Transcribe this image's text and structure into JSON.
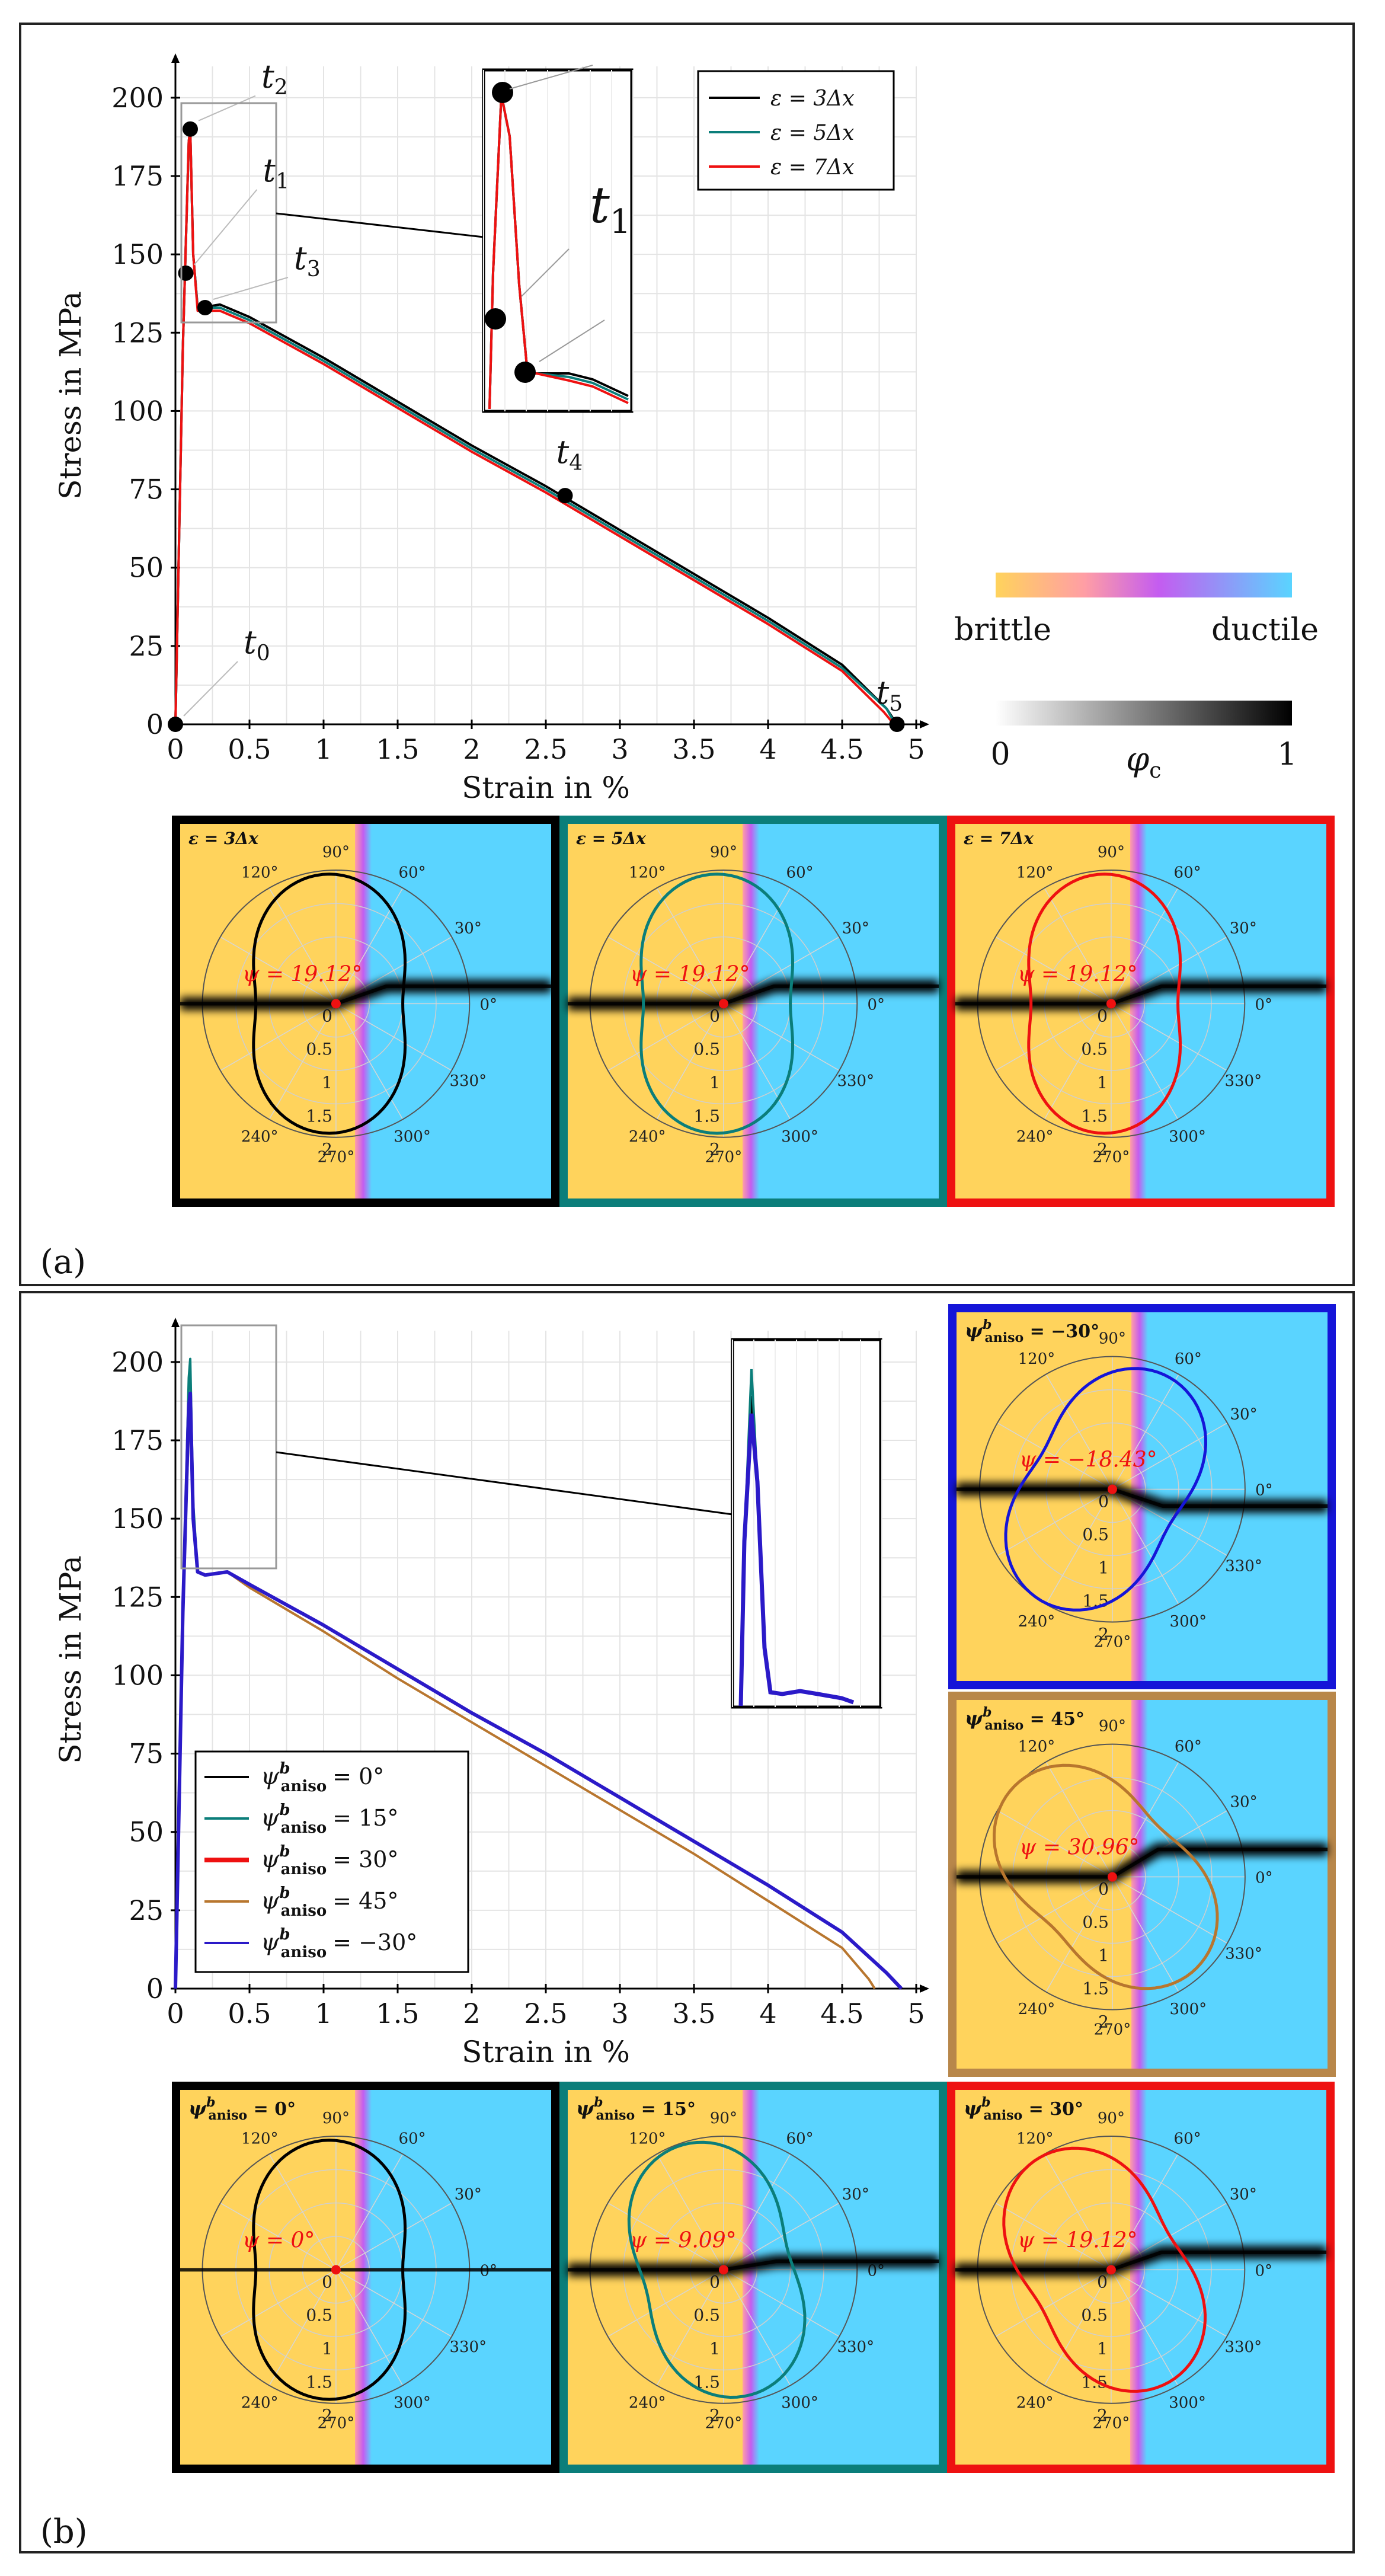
{
  "panels": [
    {
      "id": "a",
      "label": "(a)",
      "chart_data": {
        "type": "line",
        "title": "",
        "xlabel": "Strain in %",
        "ylabel": "Stress in MPa",
        "xlim": [
          0,
          5
        ],
        "ylim": [
          0,
          210
        ],
        "xticks": [
          0,
          0.5,
          1,
          1.5,
          2,
          2.5,
          3,
          3.5,
          4,
          4.5,
          5
        ],
        "xtick_labels": [
          "0",
          "0.5",
          "1",
          "1.5",
          "2",
          "2.5",
          "3",
          "3.5",
          "4",
          "4.5",
          "5"
        ],
        "yticks": [
          0,
          25,
          50,
          75,
          100,
          125,
          150,
          175,
          200
        ],
        "ytick_labels": [
          "0",
          "25",
          "50",
          "75",
          "100",
          "125",
          "150",
          "175",
          "200"
        ],
        "grid": true,
        "legend_position": "top-right",
        "series": [
          {
            "name": "ε = 3Δx",
            "color": "#000000",
            "x": [
              0,
              0.05,
              0.09,
              0.1,
              0.12,
              0.15,
              0.18,
              0.3,
              0.5,
              1.0,
              1.5,
              2.0,
              2.5,
              3.0,
              3.5,
              4.0,
              4.5,
              4.8,
              4.87
            ],
            "y": [
              0,
              120,
              186,
              190,
              150,
              133,
              133,
              134,
              130,
              117,
              103,
              89,
              76,
              62,
              48,
              34,
              19,
              5,
              0
            ]
          },
          {
            "name": "ε = 5Δx",
            "color": "#0b7e7a",
            "x": [
              0,
              0.05,
              0.09,
              0.1,
              0.12,
              0.15,
              0.18,
              0.3,
              0.5,
              1.0,
              1.5,
              2.0,
              2.5,
              3.0,
              3.5,
              4.0,
              4.5,
              4.8,
              4.86
            ],
            "y": [
              0,
              120,
              186,
              190,
              150,
              133,
              133,
              133,
              129,
              116,
              102,
              88,
              75,
              61,
              47,
              33,
              18,
              5,
              0
            ]
          },
          {
            "name": "ε = 7Δx",
            "color": "#ee1111",
            "x": [
              0,
              0.05,
              0.09,
              0.1,
              0.12,
              0.15,
              0.18,
              0.3,
              0.5,
              1.0,
              1.5,
              2.0,
              2.5,
              3.0,
              3.5,
              4.0,
              4.5,
              4.78,
              4.85
            ],
            "y": [
              0,
              120,
              186,
              190,
              150,
              132,
              132,
              132,
              128,
              115,
              101,
              87,
              74,
              60,
              46,
              32,
              17,
              4,
              0
            ]
          }
        ],
        "annotations": [
          {
            "label": "t",
            "sub": "0",
            "x": 0.0,
            "y": 0
          },
          {
            "label": "t",
            "sub": "1",
            "x": 0.07,
            "y": 144
          },
          {
            "label": "t",
            "sub": "2",
            "x": 0.1,
            "y": 190
          },
          {
            "label": "t",
            "sub": "3",
            "x": 0.2,
            "y": 133
          },
          {
            "label": "t",
            "sub": "4",
            "x": 2.63,
            "y": 73
          },
          {
            "label": "t",
            "sub": "5",
            "x": 4.87,
            "y": 0
          }
        ],
        "inset_label": "t",
        "inset_sub": "1"
      },
      "colorbars": {
        "mode_left": "brittle",
        "mode_right": "ductile",
        "phase_min": "0",
        "phase_max": "1",
        "phase_symbol": "φ",
        "phase_sub": "c"
      },
      "subplots": [
        {
          "title": "ε = 3Δx",
          "psi": "ψ = 19.12°",
          "psi_deg": 19.12,
          "rot_deg": 0,
          "curve_color": "#000000",
          "border_color": "#000000"
        },
        {
          "title": "ε = 5Δx",
          "psi": "ψ = 19.12°",
          "psi_deg": 19.12,
          "rot_deg": 0,
          "curve_color": "#0b7e7a",
          "border_color": "#0b7e7a"
        },
        {
          "title": "ε = 7Δx",
          "psi": "ψ = 19.12°",
          "psi_deg": 19.12,
          "rot_deg": 0,
          "curve_color": "#ee1111",
          "border_color": "#ee1111"
        }
      ]
    },
    {
      "id": "b",
      "label": "(b)",
      "chart_data": {
        "type": "line",
        "title": "",
        "xlabel": "Strain in %",
        "ylabel": "Stress in MPa",
        "xlim": [
          0,
          5
        ],
        "ylim": [
          0,
          210
        ],
        "xticks": [
          0,
          0.5,
          1,
          1.5,
          2,
          2.5,
          3,
          3.5,
          4,
          4.5,
          5
        ],
        "xtick_labels": [
          "0",
          "0.5",
          "1",
          "1.5",
          "2",
          "2.5",
          "3",
          "3.5",
          "4",
          "4.5",
          "5"
        ],
        "yticks": [
          0,
          25,
          50,
          75,
          100,
          125,
          150,
          175,
          200
        ],
        "ytick_labels": [
          "0",
          "25",
          "50",
          "75",
          "100",
          "125",
          "150",
          "175",
          "200"
        ],
        "grid": true,
        "legend_position": "bottom-left",
        "series": [
          {
            "name": "ψ_aniso = 0°",
            "legend_main": "ψ",
            "legend_sup": "b",
            "legend_sub": "aniso",
            "legend_value": "= 0°",
            "color": "#000000",
            "x": [
              0,
              0.05,
              0.09,
              0.1,
              0.12,
              0.15,
              0.2,
              0.35,
              0.5,
              1.0,
              1.5,
              2.0,
              2.5,
              3.0,
              3.5,
              4.0,
              4.5,
              4.8,
              4.9
            ],
            "y": [
              0,
              120,
              186,
              190,
              150,
              133,
              132,
              133,
              129,
              116,
              102,
              88,
              75,
              61,
              47,
              33,
              18,
              5,
              0
            ]
          },
          {
            "name": "ψ_aniso = 15°",
            "legend_main": "ψ",
            "legend_sup": "b",
            "legend_sub": "aniso",
            "legend_value": "= 15°",
            "color": "#0b7e7a",
            "x": [
              0,
              0.05,
              0.09,
              0.1,
              0.12,
              0.15,
              0.2,
              0.35,
              0.5,
              1.0,
              1.5,
              2.0,
              2.5,
              3.0,
              3.5,
              4.0,
              4.5,
              4.8,
              4.9
            ],
            "y": [
              0,
              120,
              195,
              201,
              155,
              133,
              132,
              133,
              129,
              116,
              102,
              88,
              75,
              61,
              47,
              33,
              18,
              5,
              0
            ]
          },
          {
            "name": "ψ_aniso = 30°",
            "legend_main": "ψ",
            "legend_sup": "b",
            "legend_sub": "aniso",
            "legend_value": "= 30°",
            "color": "#ee1111",
            "x": [
              0,
              0.05,
              0.09,
              0.1,
              0.12,
              0.15,
              0.2,
              0.35,
              0.5,
              1.0,
              1.5,
              2.0,
              2.5,
              3.0,
              3.5,
              4.0,
              4.5,
              4.8,
              4.9
            ],
            "y": [
              0,
              120,
              186,
              190,
              150,
              133,
              132,
              133,
              129,
              116,
              102,
              88,
              75,
              61,
              47,
              33,
              18,
              5,
              0
            ]
          },
          {
            "name": "ψ_aniso = 45°",
            "legend_main": "ψ",
            "legend_sup": "b",
            "legend_sub": "aniso",
            "legend_value": "= 45°",
            "color": "#b8762e",
            "x": [
              0,
              0.05,
              0.09,
              0.1,
              0.12,
              0.15,
              0.2,
              0.35,
              0.5,
              1.0,
              1.5,
              2.0,
              2.5,
              3.0,
              3.5,
              4.0,
              4.5,
              4.68,
              4.72
            ],
            "y": [
              0,
              120,
              178,
              182,
              148,
              133,
              132,
              133,
              128,
              114,
              99,
              85,
              71,
              57,
              43,
              28,
              13,
              3,
              0
            ]
          },
          {
            "name": "ψ_aniso = −30°",
            "legend_main": "ψ",
            "legend_sup": "b",
            "legend_sub": "aniso",
            "legend_value": "= −30°",
            "color": "#2b1ac8",
            "x": [
              0,
              0.05,
              0.09,
              0.1,
              0.12,
              0.15,
              0.2,
              0.35,
              0.5,
              1.0,
              1.5,
              2.0,
              2.5,
              3.0,
              3.5,
              4.0,
              4.5,
              4.8,
              4.9
            ],
            "y": [
              0,
              120,
              186,
              190,
              150,
              133,
              132,
              133,
              129,
              116,
              102,
              88,
              75,
              61,
              47,
              33,
              18,
              5,
              0
            ]
          }
        ]
      },
      "side_subplots": [
        {
          "title_main": "ψ",
          "title_sup": "b",
          "title_sub": "aniso",
          "title_value": " = −30°",
          "psi": "ψ = −18.43°",
          "psi_deg": -18.43,
          "rot_deg": -30,
          "curve_color": "#1515d8",
          "border_color": "#1515d8"
        },
        {
          "title_main": "ψ",
          "title_sup": "b",
          "title_sub": "aniso",
          "title_value": " = 45°",
          "psi": "ψ = 30.96°",
          "psi_deg": 30.96,
          "rot_deg": 45,
          "curve_color": "#b8762e",
          "border_color": "#b8874a"
        }
      ],
      "subplots": [
        {
          "title_main": "ψ",
          "title_sup": "b",
          "title_sub": "aniso",
          "title_value": " = 0°",
          "psi": "ψ = 0°",
          "psi_deg": 0,
          "rot_deg": 0,
          "curve_color": "#000000",
          "border_color": "#000000"
        },
        {
          "title_main": "ψ",
          "title_sup": "b",
          "title_sub": "aniso",
          "title_value": " = 15°",
          "psi": "ψ = 9.09°",
          "psi_deg": 9.09,
          "rot_deg": 15,
          "curve_color": "#0b7e7a",
          "border_color": "#0b7e7a"
        },
        {
          "title_main": "ψ",
          "title_sup": "b",
          "title_sub": "aniso",
          "title_value": " = 30°",
          "psi": "ψ = 19.12°",
          "psi_deg": 19.12,
          "rot_deg": 30,
          "curve_color": "#ee1111",
          "border_color": "#ee1111"
        }
      ]
    }
  ],
  "polar": {
    "angle_labels": [
      "0°",
      "30°",
      "60°",
      "90°",
      "120°",
      "240°",
      "270°",
      "300°",
      "330°"
    ],
    "radial_labels": [
      "0",
      "0.5",
      "1",
      "1.5",
      "2"
    ]
  },
  "colors": {
    "brittle": "#ffd35c",
    "ductile": "#5ad4ff",
    "transition_a": "#ff8fa8",
    "transition_b": "#c05cf0"
  }
}
